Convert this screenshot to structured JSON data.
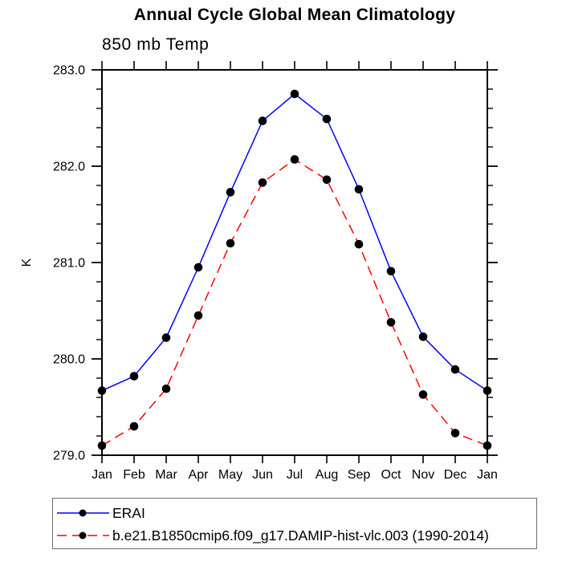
{
  "chart_data": {
    "type": "line",
    "title": "Annual Cycle Global Mean Climatology",
    "subtitle": "850 mb Temp",
    "ylabel": "K",
    "x_tick_labels": [
      "Jan",
      "Feb",
      "Mar",
      "Apr",
      "May",
      "Jun",
      "Jul",
      "Aug",
      "Sep",
      "Oct",
      "Nov",
      "Dec",
      "Jan"
    ],
    "y_tick_labels": [
      "283.0",
      "282.0",
      "281.0",
      "280.0",
      "279.0"
    ],
    "ylim": [
      279.0,
      283.0
    ],
    "y_major_step": 1.0,
    "y_minor_step": 0.2,
    "grid": false,
    "legend_position": "bottom",
    "axis_color": "#000000",
    "marker_color": "#000000",
    "series": [
      {
        "name": "ERAI",
        "color": "#0000ff",
        "line_style": "solid",
        "marker": "filled-circle",
        "values": [
          279.67,
          279.82,
          280.22,
          280.95,
          281.73,
          282.47,
          282.75,
          282.49,
          281.76,
          280.91,
          280.23,
          279.89,
          279.67
        ]
      },
      {
        "name": "b.e21.B1850cmip6.f09_g17.DAMIP-hist-vlc.003 (1990-2014)",
        "color": "#ff0000",
        "line_style": "dashed",
        "marker": "filled-circle",
        "values": [
          279.1,
          279.3,
          279.69,
          280.45,
          281.2,
          281.83,
          282.07,
          281.86,
          281.19,
          280.38,
          279.63,
          279.23,
          279.1
        ]
      }
    ]
  }
}
